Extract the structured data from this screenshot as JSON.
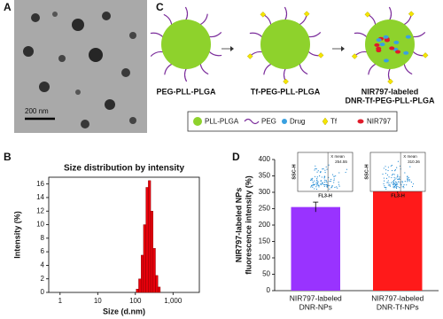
{
  "panels": [
    "A",
    "B",
    "C",
    "D"
  ],
  "tem": {
    "scale_bar": "200 nm"
  },
  "diagram": {
    "captions": [
      [
        "PEG-PLL-PLGA"
      ],
      [
        "Tf-PEG-PLL-PLGA"
      ],
      [
        "NIR797-labeled",
        "DNR-Tf-PEG-PLL-PLGA"
      ]
    ],
    "legend": [
      "PLL-PLGA",
      "PEG",
      "Drug",
      "Tf",
      "NIR797"
    ]
  },
  "insets": [
    {
      "ylabel": "SSC-H",
      "xlabel": "FL3-H",
      "stat_label": "X mean",
      "stat_value": "254.55"
    },
    {
      "ylabel": "SSC-H",
      "xlabel": "FL3-H",
      "stat_label": "X mean",
      "stat_value": "310.36"
    }
  ],
  "chart_data": [
    {
      "type": "histogram",
      "title": "Size distribution by intensity",
      "xlabel": "Size (d.nm)",
      "ylabel": "Intensity (%)",
      "xscale": "log",
      "bins": [
        105,
        122,
        142,
        164,
        190,
        220,
        255,
        295,
        342,
        396,
        459
      ],
      "values": [
        0.5,
        2,
        5.5,
        10,
        15.5,
        16.5,
        12,
        6.5,
        2.5,
        0.8
      ],
      "color": "#e8000b",
      "xlim": [
        0.5,
        5000
      ],
      "ylim": [
        0,
        17
      ],
      "xticks": [
        1,
        10,
        100,
        {
          "value": 1000,
          "label": "1,000"
        }
      ],
      "yticks": [
        0,
        2,
        4,
        6,
        8,
        10,
        12,
        14,
        16
      ]
    },
    {
      "type": "bar",
      "ylabel": [
        "NIR797-labeled NPs",
        "fluorescence intensity (%)"
      ],
      "categories": [
        [
          "NIR797-labeled",
          "DNR-NPs"
        ],
        [
          "NIR797-labeled",
          "DNR-Tf-NPs"
        ]
      ],
      "values": [
        255,
        310
      ],
      "errors": [
        15,
        12
      ],
      "colors": [
        "#9933ff",
        "#ff1a1a"
      ],
      "ylim": [
        0,
        400
      ],
      "yticks": [
        0,
        50,
        100,
        150,
        200,
        250,
        300,
        350,
        400
      ]
    }
  ]
}
